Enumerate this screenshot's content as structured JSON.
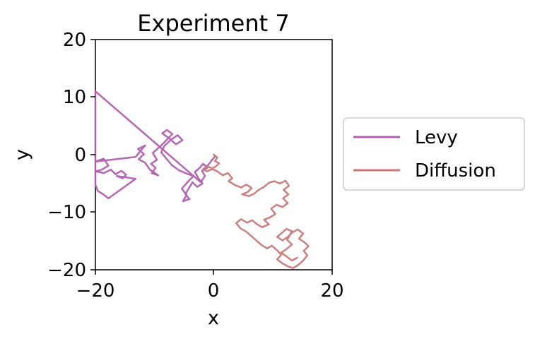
{
  "chart_data": {
    "type": "line",
    "title": "Experiment 7",
    "xlabel": "x",
    "ylabel": "y",
    "xlim": [
      -20,
      20
    ],
    "ylim": [
      -20,
      20
    ],
    "xticks": [
      "−20",
      "0",
      "20"
    ],
    "yticks": [
      "20",
      "10",
      "0",
      "−10",
      "−20"
    ],
    "grid": false,
    "legend_position": "right",
    "series": [
      {
        "name": "Levy",
        "color": "#b060b0",
        "points": [
          [
            0.2,
            -0.3
          ],
          [
            -0.5,
            -1.2
          ],
          [
            -1.2,
            -2.1
          ],
          [
            -1.8,
            -1.6
          ],
          [
            -2.5,
            -2.4
          ],
          [
            -3.2,
            -3.0
          ],
          [
            -2.6,
            -4.1
          ],
          [
            -1.9,
            -5.0
          ],
          [
            -2.8,
            -5.6
          ],
          [
            -3.6,
            -4.8
          ],
          [
            -4.2,
            -5.8
          ],
          [
            -4.8,
            -6.9
          ],
          [
            -4.1,
            -7.7
          ],
          [
            -5.2,
            -8.1
          ],
          [
            -4.6,
            -7.0
          ],
          [
            -5.4,
            -5.9
          ],
          [
            -4.3,
            -4.6
          ],
          [
            -3.4,
            -3.7
          ],
          [
            -4.6,
            -3.3
          ],
          [
            -5.9,
            -2.7
          ],
          [
            -7.1,
            -1.8
          ],
          [
            -8.0,
            -0.7
          ],
          [
            -8.9,
            0.4
          ],
          [
            -8.3,
            1.6
          ],
          [
            -7.2,
            2.6
          ],
          [
            -6.1,
            3.4
          ],
          [
            -5.3,
            2.5
          ],
          [
            -6.4,
            1.8
          ],
          [
            -7.6,
            2.9
          ],
          [
            -8.7,
            3.7
          ],
          [
            -7.9,
            4.3
          ],
          [
            -7.0,
            3.6
          ],
          [
            -8.2,
            2.3
          ],
          [
            -9.3,
            1.2
          ],
          [
            -10.3,
            0.3
          ],
          [
            -9.6,
            -0.9
          ],
          [
            -10.6,
            -1.6
          ],
          [
            -9.8,
            -2.3
          ],
          [
            -10.5,
            -3.2
          ],
          [
            -9.4,
            -3.6
          ],
          [
            -10.8,
            -2.6
          ],
          [
            -11.6,
            -1.4
          ],
          [
            -12.7,
            -0.8
          ],
          [
            -11.8,
            0.1
          ],
          [
            -12.8,
            1.0
          ],
          [
            -11.6,
            1.6
          ],
          [
            -12.6,
            0.4
          ],
          [
            -13.2,
            -0.4
          ],
          [
            -20.0,
            -1.2
          ],
          [
            -18.6,
            -0.7
          ],
          [
            -17.8,
            -1.9
          ],
          [
            -18.9,
            -2.6
          ],
          [
            -19.9,
            -2.9
          ],
          [
            -18.6,
            -3.2
          ],
          [
            -17.4,
            -2.6
          ],
          [
            -16.6,
            -3.4
          ],
          [
            -15.6,
            -2.8
          ],
          [
            -14.8,
            -3.5
          ],
          [
            -15.4,
            -4.1
          ],
          [
            -16.4,
            -3.7
          ],
          [
            -13.2,
            -4.2
          ],
          [
            -17.8,
            -7.6
          ],
          [
            -18.8,
            -6.8
          ],
          [
            -19.6,
            -6.3
          ],
          [
            -20.0,
            -5.2
          ],
          [
            -20.0,
            4.5
          ],
          [
            -20.0,
            11.0
          ],
          [
            -2.2,
            -4.8
          ],
          [
            -1.5,
            -3.7
          ],
          [
            -2.0,
            -2.8
          ],
          [
            -1.1,
            -2.3
          ]
        ]
      },
      {
        "name": "Diffusion",
        "color": "#c87878",
        "points": [
          [
            0.0,
            0.0
          ],
          [
            0.6,
            -0.5
          ],
          [
            0.2,
            -1.1
          ],
          [
            0.9,
            -1.5
          ],
          [
            0.4,
            -2.0
          ],
          [
            -0.3,
            -2.4
          ],
          [
            -1.1,
            -2.0
          ],
          [
            -1.8,
            -2.5
          ],
          [
            -1.2,
            -2.9
          ],
          [
            -0.2,
            -2.5
          ],
          [
            0.6,
            -2.9
          ],
          [
            1.5,
            -3.6
          ],
          [
            2.4,
            -3.2
          ],
          [
            3.1,
            -4.1
          ],
          [
            2.5,
            -4.6
          ],
          [
            3.6,
            -5.3
          ],
          [
            4.6,
            -5.7
          ],
          [
            5.5,
            -5.2
          ],
          [
            6.4,
            -5.8
          ],
          [
            5.7,
            -6.5
          ],
          [
            4.8,
            -6.9
          ],
          [
            5.9,
            -7.2
          ],
          [
            6.8,
            -6.8
          ],
          [
            7.6,
            -6.1
          ],
          [
            8.5,
            -5.6
          ],
          [
            9.3,
            -4.9
          ],
          [
            10.2,
            -4.6
          ],
          [
            11.2,
            -5.0
          ],
          [
            12.1,
            -4.5
          ],
          [
            12.7,
            -5.4
          ],
          [
            11.8,
            -6.1
          ],
          [
            12.6,
            -6.9
          ],
          [
            11.7,
            -7.6
          ],
          [
            12.5,
            -8.4
          ],
          [
            11.6,
            -9.1
          ],
          [
            10.6,
            -8.7
          ],
          [
            9.7,
            -9.4
          ],
          [
            10.4,
            -10.3
          ],
          [
            9.5,
            -10.9
          ],
          [
            8.5,
            -11.3
          ],
          [
            9.3,
            -12.1
          ],
          [
            8.2,
            -12.6
          ],
          [
            7.3,
            -12.1
          ],
          [
            6.5,
            -11.4
          ],
          [
            5.6,
            -11.8
          ],
          [
            4.6,
            -11.2
          ],
          [
            3.8,
            -11.9
          ],
          [
            4.5,
            -12.8
          ],
          [
            5.5,
            -13.4
          ],
          [
            6.4,
            -14.2
          ],
          [
            7.3,
            -15.0
          ],
          [
            8.1,
            -15.7
          ],
          [
            9.0,
            -16.3
          ],
          [
            9.8,
            -15.8
          ],
          [
            10.7,
            -16.6
          ],
          [
            11.4,
            -17.4
          ],
          [
            10.7,
            -18.2
          ],
          [
            11.6,
            -18.9
          ],
          [
            12.5,
            -19.4
          ],
          [
            13.4,
            -19.7
          ],
          [
            14.2,
            -19.2
          ],
          [
            15.1,
            -18.4
          ],
          [
            15.8,
            -17.5
          ],
          [
            15.2,
            -16.7
          ],
          [
            16.0,
            -15.9
          ],
          [
            15.3,
            -15.2
          ],
          [
            14.4,
            -14.6
          ],
          [
            15.1,
            -13.7
          ],
          [
            14.2,
            -13.0
          ],
          [
            13.3,
            -13.5
          ],
          [
            12.5,
            -14.3
          ],
          [
            11.6,
            -14.9
          ],
          [
            10.7,
            -14.3
          ],
          [
            11.5,
            -13.6
          ],
          [
            12.3,
            -12.9
          ],
          [
            13.2,
            -13.3
          ],
          [
            12.4,
            -14.8
          ],
          [
            13.2,
            -15.6
          ],
          [
            12.3,
            -16.4
          ],
          [
            11.4,
            -17.0
          ],
          [
            12.3,
            -17.7
          ],
          [
            13.2,
            -18.4
          ],
          [
            14.1,
            -17.9
          ]
        ]
      }
    ]
  }
}
